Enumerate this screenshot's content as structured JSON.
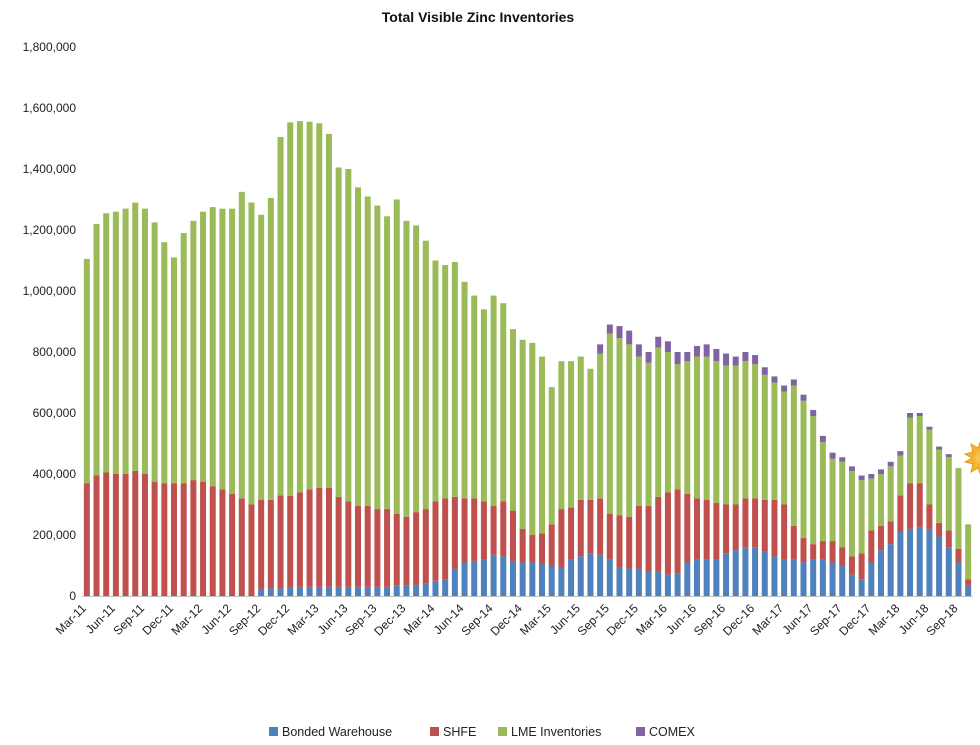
{
  "chart_data": {
    "type": "bar",
    "stacked": true,
    "title": "Total Visible  Zinc Inventories",
    "xlabel": "",
    "ylabel": "",
    "ylim": [
      0,
      1800000
    ],
    "yticks": [
      0,
      200000,
      400000,
      600000,
      800000,
      1000000,
      1200000,
      1400000,
      1600000,
      1800000
    ],
    "ytick_labels": [
      "0",
      "200,000",
      "400,000",
      "600,000",
      "800,000",
      "1,000,000",
      "1,200,000",
      "1,400,000",
      "1,600,000",
      "1,800,000"
    ],
    "grid": false,
    "legend_position": "bottom",
    "categories": [
      "Mar-11",
      "Apr-11",
      "May-11",
      "Jun-11",
      "Jul-11",
      "Aug-11",
      "Sep-11",
      "Oct-11",
      "Nov-11",
      "Dec-11",
      "Jan-12",
      "Feb-12",
      "Mar-12",
      "Apr-12",
      "May-12",
      "Jun-12",
      "Jul-12",
      "Aug-12",
      "Sep-12",
      "Oct-12",
      "Nov-12",
      "Dec-12",
      "Jan-13",
      "Feb-13",
      "Mar-13",
      "Apr-13",
      "May-13",
      "Jun-13",
      "Jul-13",
      "Aug-13",
      "Sep-13",
      "Oct-13",
      "Nov-13",
      "Dec-13",
      "Jan-14",
      "Feb-14",
      "Mar-14",
      "Apr-14",
      "May-14",
      "Jun-14",
      "Jul-14",
      "Aug-14",
      "Sep-14",
      "Oct-14",
      "Nov-14",
      "Dec-14",
      "Jan-15",
      "Feb-15",
      "Mar-15",
      "Apr-15",
      "May-15",
      "Jun-15",
      "Jul-15",
      "Aug-15",
      "Sep-15",
      "Oct-15",
      "Nov-15",
      "Dec-15",
      "Jan-16",
      "Feb-16",
      "Mar-16",
      "Apr-16",
      "May-16",
      "Jun-16",
      "Jul-16",
      "Aug-16",
      "Sep-16",
      "Oct-16",
      "Nov-16",
      "Dec-16",
      "Jan-17",
      "Feb-17",
      "Mar-17",
      "Apr-17",
      "May-17",
      "Jun-17",
      "Jul-17",
      "Aug-17",
      "Sep-17",
      "Oct-17",
      "Nov-17",
      "Dec-17",
      "Jan-18",
      "Feb-18",
      "Mar-18",
      "Apr-18",
      "May-18",
      "Jun-18",
      "Jul-18",
      "Aug-18",
      "Sep-18",
      "Oct-18"
    ],
    "tick_labels": [
      "Mar-11",
      "Jun-11",
      "Sep-11",
      "Dec-11",
      "Mar-12",
      "Jun-12",
      "Sep-12",
      "Dec-12",
      "Mar-13",
      "Jun-13",
      "Sep-13",
      "Dec-13",
      "Mar-14",
      "Jun-14",
      "Sep-14",
      "Dec-14",
      "Mar-15",
      "Jun-15",
      "Sep-15",
      "Dec-15",
      "Mar-16",
      "Jun-16",
      "Sep-16",
      "Dec-16",
      "Mar-17",
      "Jun-17",
      "Sep-17",
      "Dec-17",
      "Mar-18",
      "Jun-18",
      "Sep-18"
    ],
    "series": [
      {
        "name": "Bonded Warehouse",
        "color": "#4f81bd",
        "values": [
          0,
          0,
          0,
          0,
          0,
          0,
          0,
          0,
          0,
          0,
          0,
          0,
          0,
          0,
          0,
          0,
          0,
          0,
          20000,
          25000,
          25000,
          28000,
          30000,
          30000,
          30000,
          30000,
          30000,
          30000,
          30000,
          30000,
          30000,
          30000,
          35000,
          35000,
          35000,
          40000,
          50000,
          55000,
          90000,
          110000,
          115000,
          120000,
          135000,
          130000,
          115000,
          110000,
          110000,
          105000,
          100000,
          95000,
          120000,
          130000,
          140000,
          135000,
          120000,
          95000,
          90000,
          90000,
          80000,
          80000,
          70000,
          75000,
          110000,
          120000,
          120000,
          120000,
          140000,
          150000,
          160000,
          160000,
          145000,
          130000,
          120000,
          120000,
          110000,
          120000,
          120000,
          110000,
          100000,
          70000,
          55000,
          110000,
          150000,
          170000,
          210000,
          220000,
          225000,
          220000,
          195000,
          160000,
          110000,
          35000
        ]
      },
      {
        "name": "SHFE",
        "color": "#c0504d",
        "values": [
          370000,
          395000,
          405000,
          400000,
          400000,
          410000,
          400000,
          375000,
          370000,
          370000,
          370000,
          380000,
          375000,
          360000,
          350000,
          335000,
          320000,
          300000,
          295000,
          290000,
          305000,
          300000,
          310000,
          320000,
          325000,
          325000,
          295000,
          280000,
          265000,
          265000,
          255000,
          255000,
          235000,
          225000,
          240000,
          245000,
          260000,
          265000,
          235000,
          210000,
          205000,
          190000,
          160000,
          180000,
          165000,
          110000,
          90000,
          100000,
          135000,
          190000,
          170000,
          185000,
          175000,
          185000,
          150000,
          170000,
          170000,
          205000,
          215000,
          245000,
          270000,
          275000,
          225000,
          200000,
          195000,
          185000,
          160000,
          150000,
          160000,
          160000,
          170000,
          185000,
          180000,
          110000,
          80000,
          50000,
          60000,
          70000,
          60000,
          60000,
          85000,
          105000,
          80000,
          75000,
          120000,
          150000,
          145000,
          80000,
          45000,
          55000,
          45000,
          20000
        ]
      },
      {
        "name": "LME Inventories",
        "color": "#9bbb59",
        "values": [
          735000,
          825000,
          850000,
          860000,
          870000,
          880000,
          870000,
          850000,
          790000,
          740000,
          820000,
          850000,
          885000,
          915000,
          920000,
          935000,
          1005000,
          990000,
          935000,
          990000,
          1175000,
          1225000,
          1217000,
          1205000,
          1195000,
          1160000,
          1080000,
          1090000,
          1045000,
          1015000,
          995000,
          960000,
          1030000,
          970000,
          940000,
          880000,
          790000,
          765000,
          770000,
          710000,
          665000,
          630000,
          690000,
          650000,
          595000,
          620000,
          630000,
          580000,
          450000,
          485000,
          480000,
          470000,
          430000,
          475000,
          590000,
          580000,
          565000,
          490000,
          470000,
          490000,
          460000,
          410000,
          435000,
          465000,
          470000,
          465000,
          455000,
          455000,
          450000,
          440000,
          410000,
          385000,
          370000,
          460000,
          450000,
          420000,
          325000,
          270000,
          280000,
          280000,
          240000,
          170000,
          170000,
          180000,
          130000,
          215000,
          220000,
          245000,
          240000,
          240000,
          265000,
          180000
        ]
      },
      {
        "name": "COMEX",
        "color": "#8064a2",
        "values": [
          0,
          0,
          0,
          0,
          0,
          0,
          0,
          0,
          0,
          0,
          0,
          0,
          0,
          0,
          0,
          0,
          0,
          0,
          0,
          0,
          0,
          0,
          0,
          0,
          0,
          0,
          0,
          0,
          0,
          0,
          0,
          0,
          0,
          0,
          0,
          0,
          0,
          0,
          0,
          0,
          0,
          0,
          0,
          0,
          0,
          0,
          0,
          0,
          0,
          0,
          0,
          0,
          0,
          30000,
          30000,
          40000,
          45000,
          40000,
          35000,
          35000,
          35000,
          40000,
          30000,
          35000,
          40000,
          40000,
          40000,
          30000,
          30000,
          30000,
          25000,
          20000,
          20000,
          20000,
          20000,
          20000,
          20000,
          20000,
          15000,
          15000,
          15000,
          15000,
          15000,
          15000,
          15000,
          15000,
          10000,
          10000,
          10000,
          10000,
          0,
          0
        ]
      }
    ]
  }
}
